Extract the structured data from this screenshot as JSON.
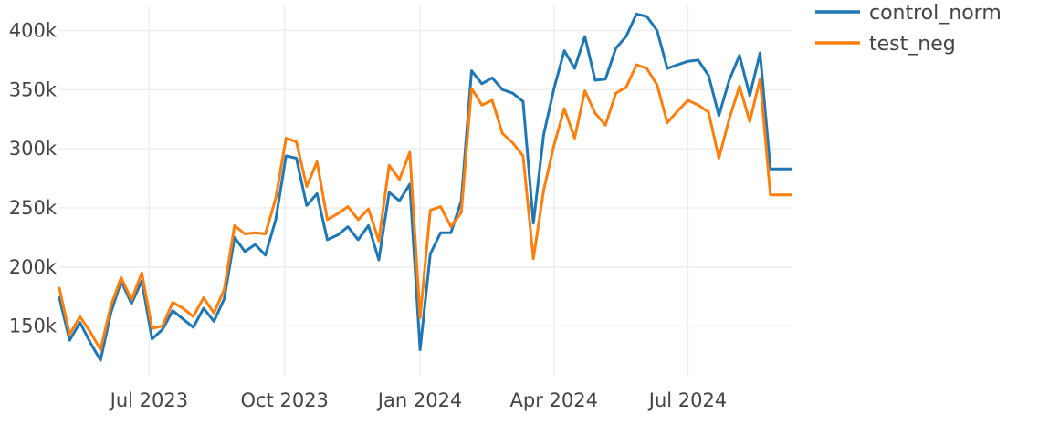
{
  "chart_data": {
    "type": "line",
    "title": "",
    "xlabel": "",
    "ylabel": "",
    "x_range": [
      "2023-05-01",
      "2024-09-10"
    ],
    "ylim": [
      108000,
      422000
    ],
    "grid": true,
    "legend_position": "top-right",
    "y_ticks": [
      {
        "value": 150000,
        "label": "150k"
      },
      {
        "value": 200000,
        "label": "200k"
      },
      {
        "value": 250000,
        "label": "250k"
      },
      {
        "value": 300000,
        "label": "300k"
      },
      {
        "value": 350000,
        "label": "350k"
      },
      {
        "value": 400000,
        "label": "400k"
      }
    ],
    "x_ticks": [
      {
        "value": "2023-07-01",
        "label": "Jul 2023"
      },
      {
        "value": "2023-10-01",
        "label": "Oct 2023"
      },
      {
        "value": "2024-01-01",
        "label": "Jan 2024"
      },
      {
        "value": "2024-04-01",
        "label": "Apr 2024"
      },
      {
        "value": "2024-07-01",
        "label": "Jul 2024"
      }
    ],
    "x": [
      "2023-05-01",
      "2023-05-08",
      "2023-05-15",
      "2023-05-22",
      "2023-05-29",
      "2023-06-05",
      "2023-06-12",
      "2023-06-19",
      "2023-06-26",
      "2023-07-03",
      "2023-07-10",
      "2023-07-17",
      "2023-07-24",
      "2023-07-31",
      "2023-08-07",
      "2023-08-14",
      "2023-08-21",
      "2023-08-28",
      "2023-09-04",
      "2023-09-11",
      "2023-09-18",
      "2023-09-25",
      "2023-10-02",
      "2023-10-09",
      "2023-10-16",
      "2023-10-23",
      "2023-10-30",
      "2023-11-06",
      "2023-11-13",
      "2023-11-20",
      "2023-11-27",
      "2023-12-04",
      "2023-12-11",
      "2023-12-18",
      "2023-12-25",
      "2024-01-01",
      "2024-01-08",
      "2024-01-15",
      "2024-01-22",
      "2024-01-29",
      "2024-02-05",
      "2024-02-12",
      "2024-02-19",
      "2024-02-26",
      "2024-03-04",
      "2024-03-11",
      "2024-03-18",
      "2024-03-25",
      "2024-04-01",
      "2024-04-08",
      "2024-04-15",
      "2024-04-22",
      "2024-04-29",
      "2024-05-06",
      "2024-05-13",
      "2024-05-20",
      "2024-05-27",
      "2024-06-03",
      "2024-06-10",
      "2024-06-17",
      "2024-06-24",
      "2024-07-01",
      "2024-07-08",
      "2024-07-15",
      "2024-07-22",
      "2024-07-29",
      "2024-08-05",
      "2024-08-12",
      "2024-08-19",
      "2024-08-26",
      "2024-09-02",
      "2024-09-09"
    ],
    "series": [
      {
        "name": "control_norm",
        "color": "#1f77b4",
        "values": [
          174000,
          138000,
          153000,
          136000,
          121000,
          161000,
          188000,
          169000,
          188000,
          139000,
          147000,
          163000,
          156000,
          149000,
          165000,
          154000,
          173000,
          225000,
          213000,
          219000,
          210000,
          240000,
          294000,
          292000,
          252000,
          262000,
          223000,
          227000,
          234000,
          223000,
          235000,
          206000,
          263000,
          256000,
          270000,
          130000,
          211000,
          229000,
          229000,
          256000,
          366000,
          355000,
          360000,
          350000,
          347000,
          340000,
          237000,
          312000,
          351000,
          383000,
          368000,
          395000,
          358000,
          359000,
          385000,
          395000,
          414000,
          412000,
          400000,
          368000,
          371000,
          374000,
          375000,
          362000,
          328000,
          358000,
          379000,
          345000,
          381000,
          283000,
          283000,
          283000
        ]
      },
      {
        "name": "test_neg",
        "color": "#ff7f0e",
        "values": [
          182000,
          143000,
          158000,
          145000,
          130000,
          167000,
          191000,
          172000,
          195000,
          148000,
          150000,
          170000,
          165000,
          158000,
          174000,
          161000,
          181000,
          235000,
          228000,
          229000,
          228000,
          258000,
          309000,
          306000,
          268000,
          289000,
          240000,
          245000,
          251000,
          240000,
          249000,
          222000,
          286000,
          274000,
          297000,
          157000,
          248000,
          251000,
          234000,
          246000,
          351000,
          337000,
          341000,
          313000,
          305000,
          294000,
          207000,
          265000,
          303000,
          334000,
          309000,
          349000,
          330000,
          320000,
          347000,
          352000,
          371000,
          368000,
          354000,
          322000,
          332000,
          341000,
          337000,
          331000,
          292000,
          325000,
          353000,
          323000,
          359000,
          261000,
          261000,
          261000
        ]
      }
    ]
  }
}
